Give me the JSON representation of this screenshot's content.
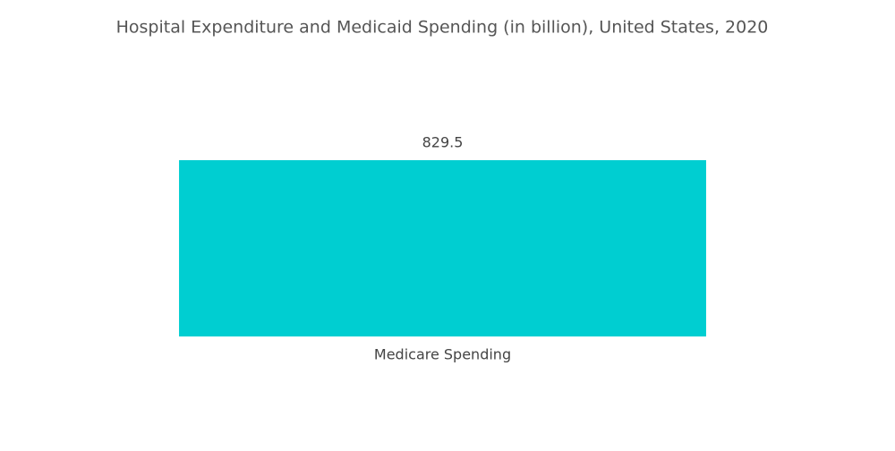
{
  "chart_data": {
    "type": "bar",
    "title": "Hospital Expenditure and Medicaid Spending (in billion), United States, 2020",
    "categories": [
      "Medicare Spending"
    ],
    "values": [
      829.5
    ],
    "color": "#00ced1"
  }
}
